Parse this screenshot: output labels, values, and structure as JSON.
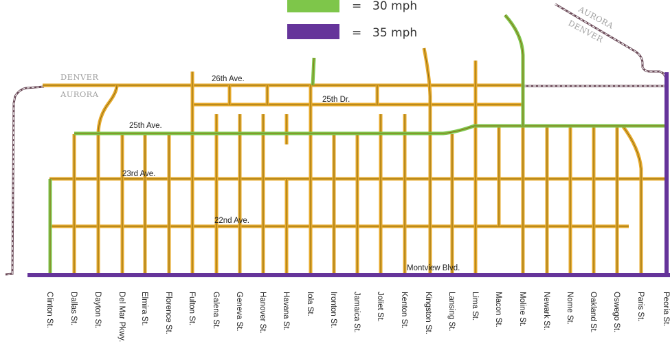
{
  "legend": {
    "items": [
      {
        "symbol": "=",
        "label": "30 mph",
        "color": "#7ec64a"
      },
      {
        "symbol": "=",
        "label": "35 mph",
        "color": "#65349a"
      }
    ]
  },
  "boundary_labels": {
    "left_top": "DENVER",
    "left_bottom": "AURORA",
    "right_top": "AURORA",
    "right_bottom": "DENVER"
  },
  "avenues": {
    "ave_26th": "26th Ave.",
    "dr_25th": "25th Dr.",
    "ave_25th": "25th Ave.",
    "ave_23rd": "23rd Ave.",
    "ave_22nd": "22nd Ave.",
    "montview": "Montview Blvd."
  },
  "streets": [
    "Clinton St.",
    "Dallas St.",
    "Dayton St.",
    "Del Mar Pkwy.",
    "Elmira St.",
    "Florence St.",
    "Fulton St.",
    "Galena St.",
    "Geneva St.",
    "Hanover St.",
    "Havana St.",
    "Iola St.",
    "Ironton St.",
    "Jamaica St.",
    "Joliet St.",
    "Kenton St.",
    "Kingston St.",
    "Lansing St.",
    "Lima St.",
    "Macon St.",
    "Moline St.",
    "Newark St.",
    "Nome St.",
    "Oakland St.",
    "Oswego St.",
    "Paris St.",
    "Peoria St."
  ],
  "colors": {
    "road": "#e6a92b",
    "road_core": "#8a6a12",
    "speed_30": "#7ec64a",
    "speed_35": "#65349a",
    "boundary": "#6b4a58"
  }
}
